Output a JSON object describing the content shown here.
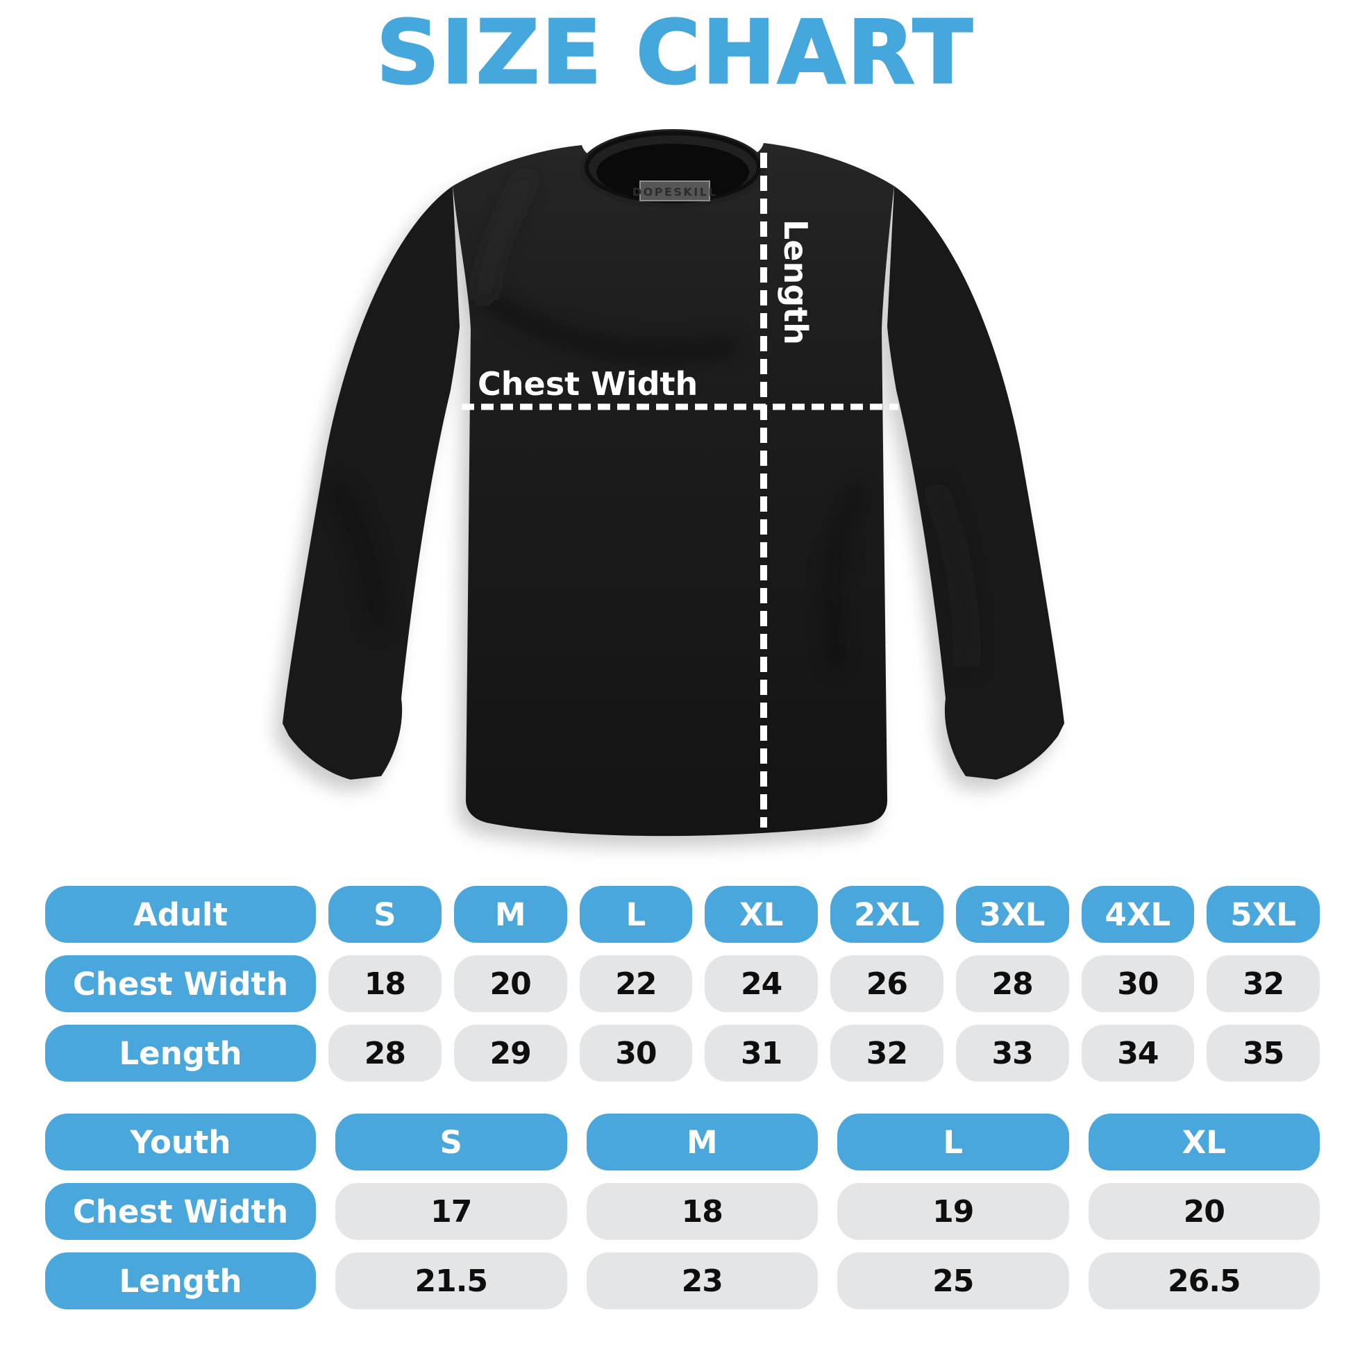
{
  "title": "SIZE CHART",
  "colors": {
    "accent_blue": "#4AA7DB",
    "cell_gray": "#E4E5E7",
    "title_blue": "#45A7DB",
    "shirt_black": "#1B1B1B"
  },
  "shirt": {
    "brand_label": "DOPESKILL",
    "chest_width_label": "Chest Width",
    "length_label": "Length"
  },
  "chart_data": [
    {
      "type": "table",
      "title": "Adult",
      "columns": [
        "S",
        "M",
        "L",
        "XL",
        "2XL",
        "3XL",
        "4XL",
        "5XL"
      ],
      "rows": [
        {
          "label": "Chest Width",
          "values": [
            "18",
            "20",
            "22",
            "24",
            "26",
            "28",
            "30",
            "32"
          ]
        },
        {
          "label": "Length",
          "values": [
            "28",
            "29",
            "30",
            "31",
            "32",
            "33",
            "34",
            "35"
          ]
        }
      ]
    },
    {
      "type": "table",
      "title": "Youth",
      "columns": [
        "S",
        "M",
        "L",
        "XL"
      ],
      "rows": [
        {
          "label": "Chest Width",
          "values": [
            "17",
            "18",
            "19",
            "20"
          ]
        },
        {
          "label": "Length",
          "values": [
            "21.5",
            "23",
            "25",
            "26.5"
          ]
        }
      ]
    }
  ]
}
